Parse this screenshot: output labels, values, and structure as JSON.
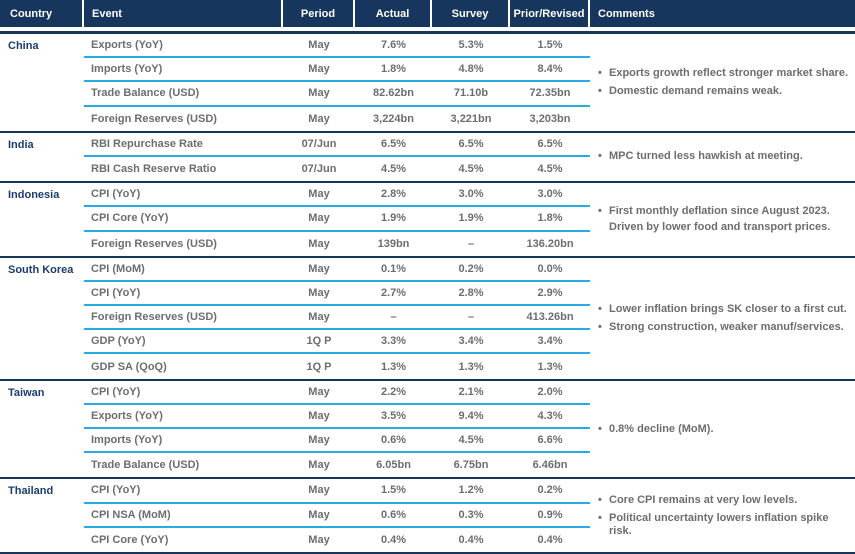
{
  "bullet": "•",
  "colors": {
    "navy": "#16365d",
    "cyan": "#29abe2",
    "country_blue": "#1d3c72",
    "text_gray": "#6b6e70"
  },
  "header": {
    "country": "Country",
    "event": "Event",
    "period": "Period",
    "actual": "Actual",
    "survey": "Survey",
    "prior": "Prior/Revised",
    "comments": "Comments"
  },
  "groups": [
    {
      "country": "China",
      "rows": [
        {
          "event": "Exports (YoY)",
          "period": "May",
          "actual": "7.6%",
          "survey": "5.3%",
          "prior": "1.5%"
        },
        {
          "event": "Imports (YoY)",
          "period": "May",
          "actual": "1.8%",
          "survey": "4.8%",
          "prior": "8.4%"
        },
        {
          "event": "Trade Balance (USD)",
          "period": "May",
          "actual": "82.62bn",
          "survey": "71.10b",
          "prior": "72.35bn"
        },
        {
          "event": "Foreign Reserves (USD)",
          "period": "May",
          "actual": "3,224bn",
          "survey": "3,221bn",
          "prior": "3,203bn"
        }
      ],
      "comments": [
        "Exports growth reflect stronger market share.",
        "Domestic demand remains weak."
      ]
    },
    {
      "country": "India",
      "rows": [
        {
          "event": "RBI Repurchase Rate",
          "period": "07/Jun",
          "actual": "6.5%",
          "survey": "6.5%",
          "prior": "6.5%"
        },
        {
          "event": "RBI Cash Reserve Ratio",
          "period": "07/Jun",
          "actual": "4.5%",
          "survey": "4.5%",
          "prior": "4.5%"
        }
      ],
      "comments": [
        "MPC turned less hawkish at meeting."
      ]
    },
    {
      "country": "Indonesia",
      "rows": [
        {
          "event": "CPI (YoY)",
          "period": "May",
          "actual": "2.8%",
          "survey": "3.0%",
          "prior": "3.0%"
        },
        {
          "event": "CPI Core (YoY)",
          "period": "May",
          "actual": "1.9%",
          "survey": "1.9%",
          "prior": "1.8%"
        },
        {
          "event": "Foreign Reserves (USD)",
          "period": "May",
          "actual": "139bn",
          "survey": "–",
          "prior": "136.20bn"
        }
      ],
      "comments": [
        "First monthly deflation since August 2023.",
        "Driven by lower food and transport prices."
      ]
    },
    {
      "country": "South Korea",
      "rows": [
        {
          "event": "CPI (MoM)",
          "period": "May",
          "actual": "0.1%",
          "survey": "0.2%",
          "prior": "0.0%"
        },
        {
          "event": "CPI (YoY)",
          "period": "May",
          "actual": "2.7%",
          "survey": "2.8%",
          "prior": "2.9%"
        },
        {
          "event": "Foreign Reserves (USD)",
          "period": "May",
          "actual": "–",
          "survey": "–",
          "prior": "413.26bn"
        },
        {
          "event": "GDP (YoY)",
          "period": "1Q P",
          "actual": "3.3%",
          "survey": "3.4%",
          "prior": "3.4%"
        },
        {
          "event": "GDP SA (QoQ)",
          "period": "1Q P",
          "actual": "1.3%",
          "survey": "1.3%",
          "prior": "1.3%"
        }
      ],
      "comments": [
        "Lower inflation brings SK closer to a first cut.",
        "Strong construction, weaker manuf/services."
      ]
    },
    {
      "country": "Taiwan",
      "rows": [
        {
          "event": "CPI (YoY)",
          "period": "May",
          "actual": "2.2%",
          "survey": "2.1%",
          "prior": "2.0%"
        },
        {
          "event": "Exports (YoY)",
          "period": "May",
          "actual": "3.5%",
          "survey": "9.4%",
          "prior": "4.3%"
        },
        {
          "event": "Imports (YoY)",
          "period": "May",
          "actual": "0.6%",
          "survey": "4.5%",
          "prior": "6.6%"
        },
        {
          "event": "Trade Balance (USD)",
          "period": "May",
          "actual": "6.05bn",
          "survey": "6.75bn",
          "prior": "6.46bn"
        }
      ],
      "comments": [
        "0.8% decline (MoM)."
      ]
    },
    {
      "country": "Thailand",
      "rows": [
        {
          "event": "CPI (YoY)",
          "period": "May",
          "actual": "1.5%",
          "survey": "1.2%",
          "prior": "0.2%"
        },
        {
          "event": "CPI NSA (MoM)",
          "period": "May",
          "actual": "0.6%",
          "survey": "0.3%",
          "prior": "0.9%"
        },
        {
          "event": "CPI Core (YoY)",
          "period": "May",
          "actual": "0.4%",
          "survey": "0.4%",
          "prior": "0.4%"
        }
      ],
      "comments": [
        "Core CPI remains at very low levels.",
        "Political uncertainty lowers inflation spike risk."
      ]
    }
  ]
}
